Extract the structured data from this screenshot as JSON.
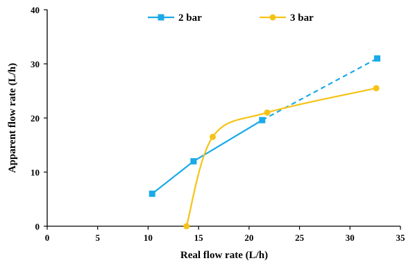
{
  "chart_data": {
    "type": "line",
    "xlabel": "Real flow rate (L/h)",
    "ylabel": "Apparent  flow rate (L/h)",
    "xlim": [
      0,
      35
    ],
    "ylim": [
      0,
      40
    ],
    "xticks": [
      0,
      5,
      10,
      15,
      20,
      25,
      30,
      35
    ],
    "yticks": [
      0,
      10,
      20,
      30,
      40
    ],
    "grid": false,
    "legend_position": "top",
    "series": [
      {
        "name": "2 bar",
        "color": "#1aaae8",
        "marker": "square",
        "points": [
          [
            10.4,
            6
          ],
          [
            14.5,
            12
          ],
          [
            21.3,
            19.6
          ],
          [
            32.7,
            31
          ]
        ],
        "solid_segments": 3,
        "dashed_last_segment": true
      },
      {
        "name": "3 bar",
        "color": "#f5c316",
        "marker": "circle",
        "smooth": true,
        "points": [
          [
            13.8,
            0
          ],
          [
            16.4,
            16.5
          ],
          [
            21.8,
            21
          ],
          [
            32.6,
            25.5
          ]
        ]
      }
    ]
  }
}
